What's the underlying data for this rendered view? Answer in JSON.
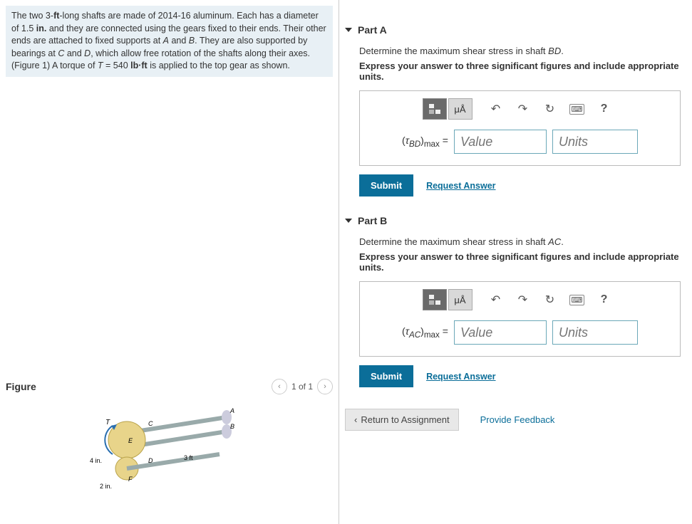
{
  "problem": {
    "text_html": "The two 3-<b>ft</b>-long shafts are made of 2014-16 aluminum. Each has a diameter of 1.5 <b>in.</b> and they are connected using the gears fixed to their ends. Their other ends are attached to fixed supports at <i>A</i> and <i>B</i>. They are also supported by bearings at <i>C</i> and <i>D</i>, which allow free rotation of the shafts along their axes. (Figure 1) A torque of <i>T</i> = 540 <b>lb·ft</b> is applied to the top gear as shown."
  },
  "figure": {
    "title": "Figure",
    "counter": "1 of 1",
    "labels": {
      "A": "A",
      "B": "B",
      "C": "C",
      "D": "D",
      "E": "E",
      "F": "F",
      "T": "T",
      "len": "3 ft",
      "r1": "4 in.",
      "r2": "2 in."
    }
  },
  "parts": [
    {
      "id": "A",
      "title": "Part A",
      "instr1_html": "Determine the maximum shear stress in shaft <i>BD</i>.",
      "instr2": "Express your answer to three significant figures and include appropriate units.",
      "eq_label_html": "(<i>τ<sub>BD</sub></i>)<sub>max</sub> =",
      "value_ph": "Value",
      "units_ph": "Units",
      "submit": "Submit",
      "request": "Request Answer"
    },
    {
      "id": "B",
      "title": "Part B",
      "instr1_html": "Determine the maximum shear stress in shaft <i>AC</i>.",
      "instr2": "Express your answer to three significant figures and include appropriate units.",
      "eq_label_html": "(<i>τ<sub>AC</sub></i>)<sub>max</sub> =",
      "value_ph": "Value",
      "units_ph": "Units",
      "submit": "Submit",
      "request": "Request Answer"
    }
  ],
  "toolbar": {
    "template": "template-icon",
    "micro": "μÅ",
    "undo": "↶",
    "redo": "↷",
    "reset": "↻",
    "keyboard": "⌨",
    "help": "?"
  },
  "footer": {
    "return": "Return to Assignment",
    "feedback": "Provide Feedback"
  },
  "colors": {
    "accent": "#0b6e99",
    "box_border": "#bbb",
    "input_border": "#6ba8b8",
    "problem_bg": "#e8f0f5"
  }
}
